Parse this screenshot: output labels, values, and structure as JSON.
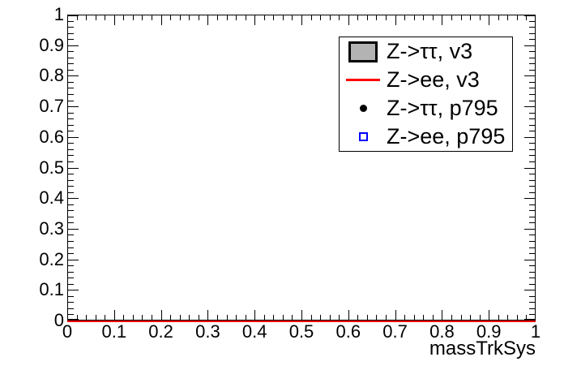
{
  "chart_data": {
    "type": "line",
    "title": "",
    "xlabel": "massTrkSys",
    "ylabel": "",
    "xlim": [
      0,
      1
    ],
    "ylim": [
      0,
      1
    ],
    "grid": false,
    "background_color": "#ffffff",
    "frame_color": "#000000",
    "text_color": "#000000",
    "x_tick_values": [
      0,
      0.1,
      0.2,
      0.3,
      0.4,
      0.5,
      0.6,
      0.7,
      0.8,
      0.9,
      1
    ],
    "x_tick_labels": [
      "0",
      "0.1",
      "0.2",
      "0.3",
      "0.4",
      "0.5",
      "0.6",
      "0.7",
      "0.8",
      "0.9",
      "1"
    ],
    "y_tick_values": [
      0,
      0.1,
      0.2,
      0.3,
      0.4,
      0.5,
      0.6,
      0.7,
      0.8,
      0.9,
      1
    ],
    "y_tick_labels": [
      "0",
      "0.1",
      "0.2",
      "0.3",
      "0.4",
      "0.5",
      "0.6",
      "0.7",
      "0.8",
      "0.9",
      "1"
    ],
    "minor_tick_step": 0.02,
    "legend": {
      "position": "top-right",
      "entries": [
        {
          "label": "Z->ττ, v3",
          "symbol": "filled-box",
          "fill_color": "#b3b3b3",
          "line_color": "#000000"
        },
        {
          "label": "Z->ee, v3",
          "symbol": "line",
          "line_color": "#ff0000"
        },
        {
          "label": "Z->ττ, p795",
          "symbol": "filled-circle",
          "marker_color": "#000000"
        },
        {
          "label": "Z->ee, p795",
          "symbol": "open-square",
          "marker_color": "#0000ff"
        }
      ]
    },
    "series": [
      {
        "name": "Z->ee, v3",
        "type": "line",
        "color": "#ff0000",
        "x": [
          0,
          1
        ],
        "y": [
          0,
          0
        ]
      }
    ]
  }
}
